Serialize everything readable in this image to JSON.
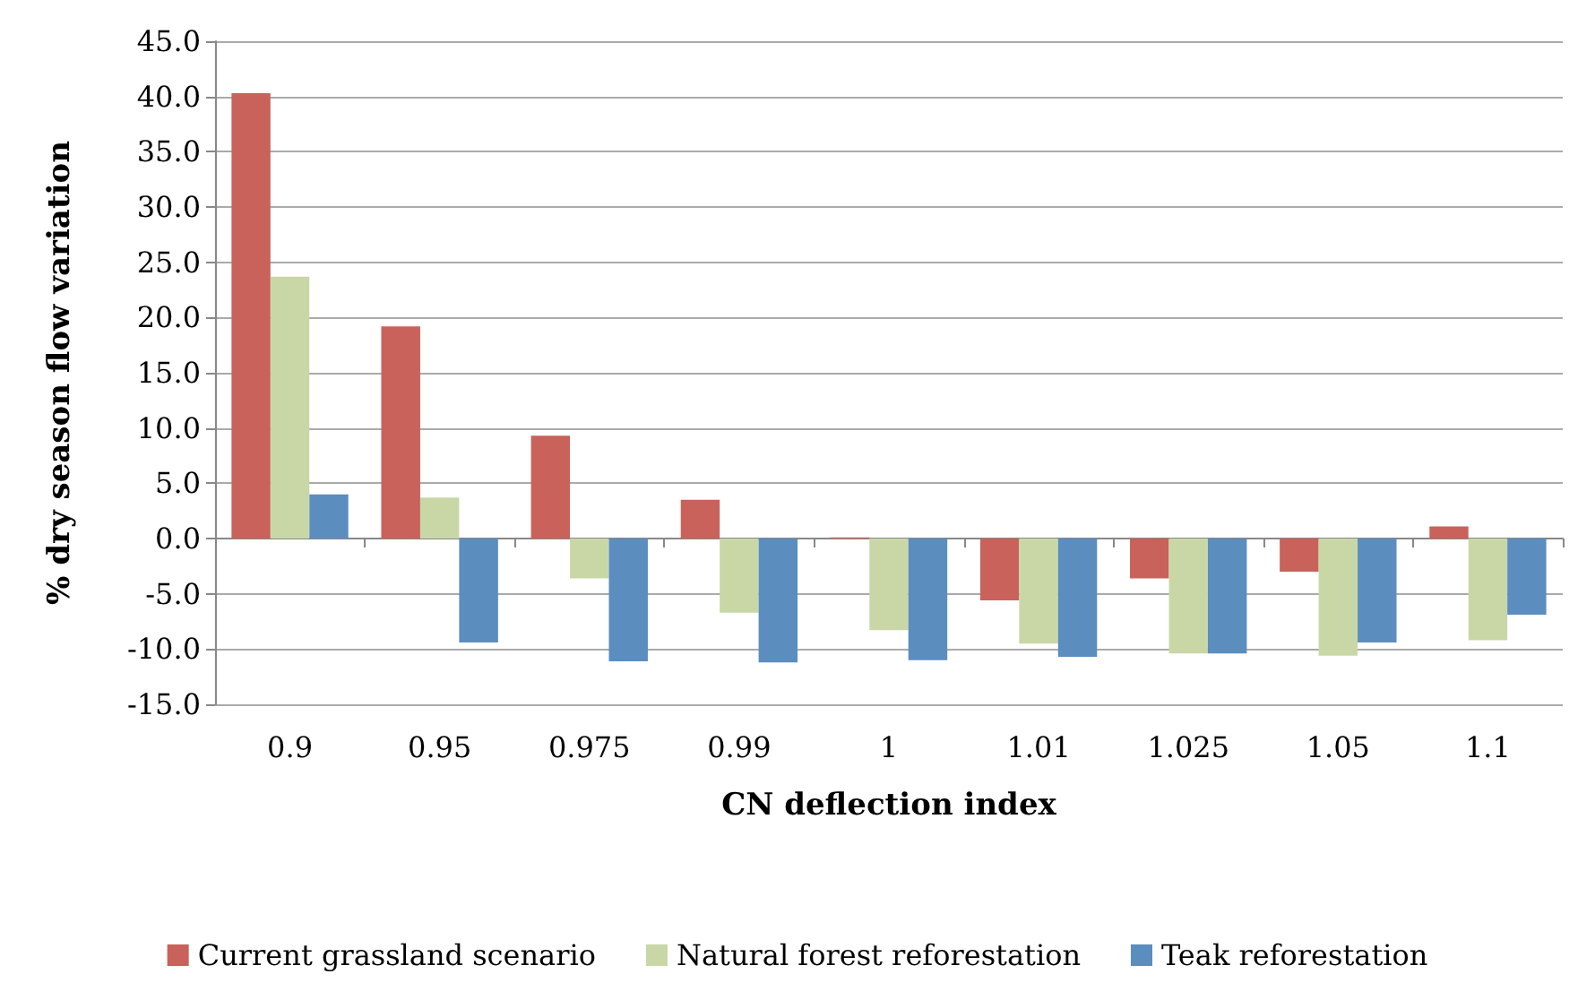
{
  "chart_data": {
    "type": "bar",
    "xlabel": "CN deflection index",
    "ylabel": "% dry season flow variation",
    "categories": [
      "0.9",
      "0.95",
      "0.975",
      "0.99",
      "1",
      "1.01",
      "1.025",
      "1.05",
      "1.1"
    ],
    "series": [
      {
        "name": "Current grassland scenario",
        "color": "#c8625b",
        "values": [
          40.3,
          19.2,
          9.3,
          3.5,
          0.1,
          -5.6,
          -3.6,
          -3.0,
          1.1
        ]
      },
      {
        "name": "Natural forest reforestation",
        "color": "#c9d7a7",
        "values": [
          23.7,
          3.7,
          -3.6,
          -6.7,
          -8.3,
          -9.5,
          -10.4,
          -10.6,
          -9.2
        ]
      },
      {
        "name": "Teak reforestation",
        "color": "#5b8dbf",
        "values": [
          4.0,
          -9.4,
          -11.1,
          -11.2,
          -11.0,
          -10.7,
          -10.4,
          -9.4,
          -6.9
        ]
      }
    ],
    "ylim": [
      -15,
      45
    ],
    "yticks": [
      {
        "value": -15,
        "label": "-15.0"
      },
      {
        "value": -10,
        "label": "-10.0"
      },
      {
        "value": -5,
        "label": "-5.0"
      },
      {
        "value": 0,
        "label": "0.0"
      },
      {
        "value": 5,
        "label": "5.0"
      },
      {
        "value": 10,
        "label": "10.0"
      },
      {
        "value": 15,
        "label": "15.0"
      },
      {
        "value": 20,
        "label": "20.0"
      },
      {
        "value": 25,
        "label": "25.0"
      },
      {
        "value": 30,
        "label": "30.0"
      },
      {
        "value": 35,
        "label": "35.0"
      },
      {
        "value": 40,
        "label": "40.0"
      },
      {
        "value": 45,
        "label": "45.0"
      }
    ],
    "grid": "y",
    "legend": "bottom"
  }
}
